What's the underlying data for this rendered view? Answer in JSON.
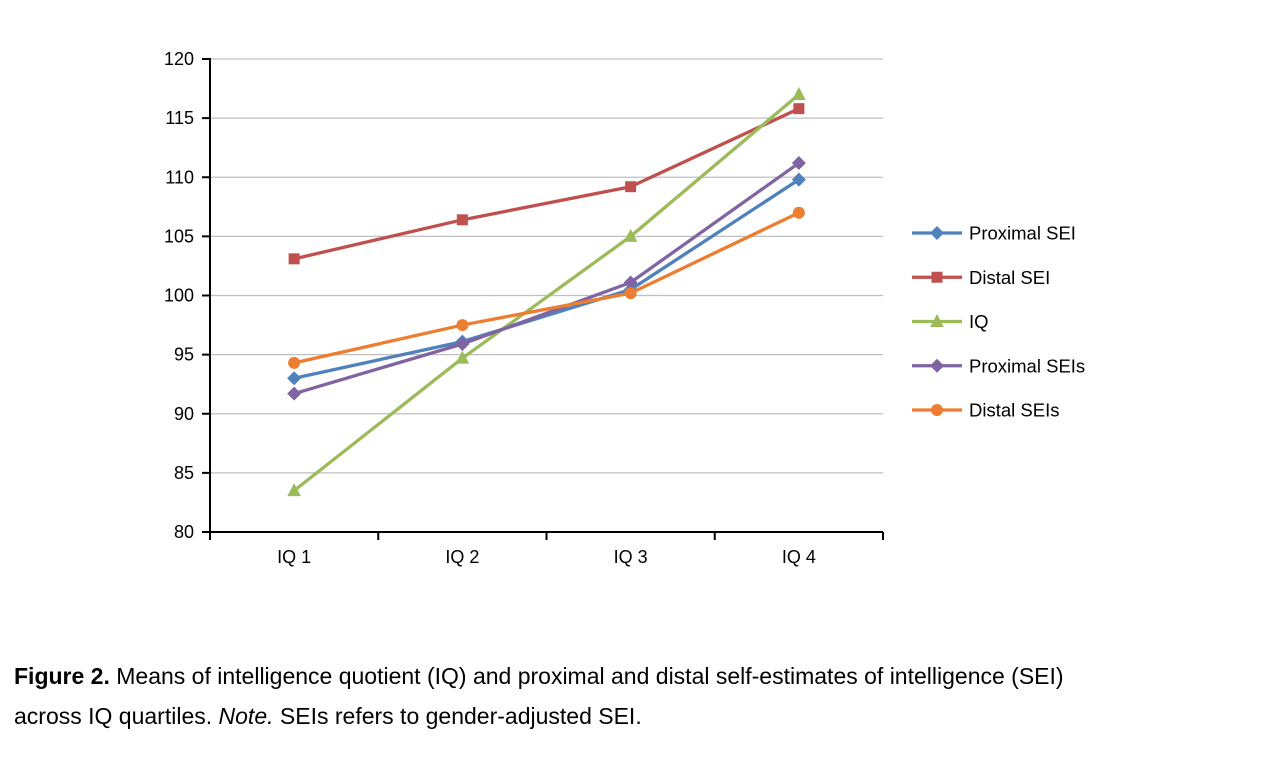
{
  "figure": {
    "caption": {
      "label": "Figure 2.",
      "line1_rest": "  Means of intelligence quotient (IQ) and proximal and distal self-estimates of intelligence (SEI)",
      "line2_pre_note": "across IQ quartiles. ",
      "note_label": "Note.",
      "line2_post_note": " SEIs refers to gender-adjusted SEI."
    }
  },
  "chart_data": {
    "type": "line",
    "title": "",
    "xlabel": "",
    "ylabel": "",
    "categories": [
      "IQ 1",
      "IQ 2",
      "IQ 3",
      "IQ 4"
    ],
    "ylim": [
      80,
      120
    ],
    "ytick_step": 5,
    "grid": true,
    "legend_position": "right",
    "axis_color": "#000000",
    "gridline_color": "#BFBFBF",
    "series": [
      {
        "name": "Proximal SEI",
        "color": "#4F81BD",
        "marker": "diamond",
        "values": [
          93.0,
          96.1,
          100.5,
          109.8
        ]
      },
      {
        "name": "Distal SEI",
        "color": "#C0504D",
        "marker": "square",
        "values": [
          103.1,
          106.4,
          109.2,
          115.8
        ]
      },
      {
        "name": "IQ",
        "color": "#9BBB59",
        "marker": "triangle",
        "values": [
          83.5,
          94.7,
          105.0,
          117.0
        ]
      },
      {
        "name": "Proximal SEIs",
        "color": "#8064A2",
        "marker": "diamond",
        "values": [
          91.7,
          95.9,
          101.1,
          111.2
        ]
      },
      {
        "name": "Distal SEIs",
        "color": "#ED7D31",
        "marker": "circle",
        "values": [
          94.3,
          97.5,
          100.2,
          107.0
        ]
      }
    ]
  }
}
